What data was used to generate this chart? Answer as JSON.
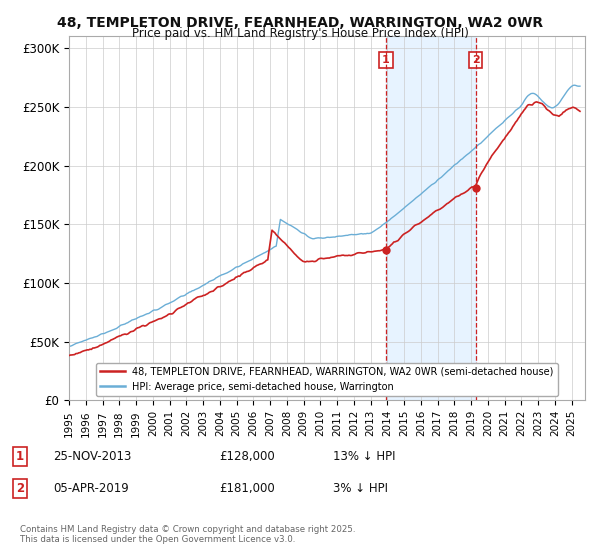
{
  "title_line1": "48, TEMPLETON DRIVE, FEARNHEAD, WARRINGTON, WA2 0WR",
  "title_line2": "Price paid vs. HM Land Registry's House Price Index (HPI)",
  "ylabel_ticks": [
    "£0",
    "£50K",
    "£100K",
    "£150K",
    "£200K",
    "£250K",
    "£300K"
  ],
  "ytick_values": [
    0,
    50000,
    100000,
    150000,
    200000,
    250000,
    300000
  ],
  "ylim": [
    0,
    310000
  ],
  "xlim_start": 1995.0,
  "xlim_end": 2025.8,
  "sale1_date": 2013.92,
  "sale1_price": 128000,
  "sale1_label": "1",
  "sale2_date": 2019.27,
  "sale2_price": 181000,
  "sale2_label": "2",
  "hpi_color": "#6baed6",
  "price_color": "#cc2222",
  "shaded_color": "#ddeeff",
  "vline_color": "#cc2222",
  "legend_label1": "48, TEMPLETON DRIVE, FEARNHEAD, WARRINGTON, WA2 0WR (semi-detached house)",
  "legend_label2": "HPI: Average price, semi-detached house, Warrington",
  "footnote": "Contains HM Land Registry data © Crown copyright and database right 2025.\nThis data is licensed under the Open Government Licence v3.0.",
  "background_color": "#ffffff"
}
